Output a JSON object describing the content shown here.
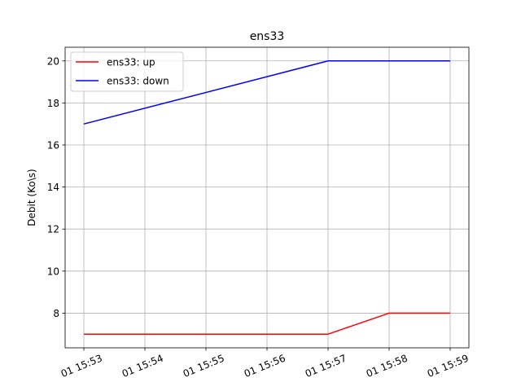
{
  "chart_data": {
    "type": "line",
    "title": "ens33",
    "xlabel": "",
    "ylabel": "Debit (Ko\\s)",
    "x": [
      "01 15:53",
      "01 15:54",
      "01 15:55",
      "01 15:56",
      "01 15:57",
      "01 15:58",
      "01 15:59"
    ],
    "series": [
      {
        "name": "ens33: up",
        "color": "#ff0000",
        "points": [
          {
            "x": "01 15:53",
            "y": 7
          },
          {
            "x": "01 15:57",
            "y": 7
          },
          {
            "x": "01 15:58",
            "y": 8
          },
          {
            "x": "01 15:59",
            "y": 8
          }
        ]
      },
      {
        "name": "ens33: down",
        "color": "#0000ff",
        "points": [
          {
            "x": "01 15:53",
            "y": 17
          },
          {
            "x": "01 15:57",
            "y": 20
          },
          {
            "x": "01 15:58",
            "y": 20
          },
          {
            "x": "01 15:59",
            "y": 20
          }
        ]
      }
    ],
    "yticks": [
      8,
      10,
      12,
      14,
      16,
      18,
      20
    ],
    "ylim": [
      6.35,
      20.65
    ],
    "grid": true,
    "legend": "top-left"
  }
}
